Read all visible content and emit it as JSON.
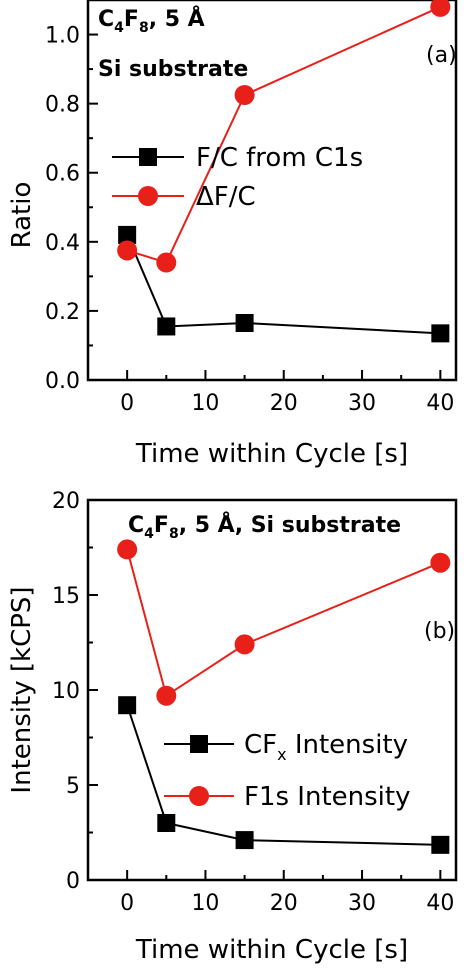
{
  "colors": {
    "series_black": "#000000",
    "series_red": "#e8201a",
    "axis": "#000000"
  },
  "chart_data": [
    {
      "type": "line",
      "panel_label": "(a)",
      "annotation_line1": {
        "base": "C",
        "sub1": "4",
        "mid": "F",
        "sub2": "8",
        "rest": ", 5 Å"
      },
      "annotation_line2": "Si substrate",
      "xlabel": "Time within Cycle [s]",
      "ylabel": "Ratio",
      "xlim": [
        -5,
        42
      ],
      "ylim": [
        0,
        1.1
      ],
      "xticks": [
        0,
        10,
        20,
        30,
        40
      ],
      "xtick_labels": [
        "0",
        "10",
        "20",
        "30",
        "40"
      ],
      "yticks": [
        0.0,
        0.2,
        0.4,
        0.6,
        0.8,
        1.0
      ],
      "ytick_labels": [
        "0.0",
        "0.2",
        "0.4",
        "0.6",
        "0.8",
        "1.0"
      ],
      "legend_position": "middle-left",
      "series": [
        {
          "name": "F/C from C1s",
          "marker": "square",
          "color": "#000000",
          "x": [
            0,
            5,
            15,
            40
          ],
          "y": [
            0.42,
            0.155,
            0.165,
            0.135
          ]
        },
        {
          "name": "ΔF/C",
          "marker": "circle",
          "color": "#e8201a",
          "x": [
            0,
            5,
            15,
            40
          ],
          "y": [
            0.375,
            0.34,
            0.825,
            1.08
          ]
        }
      ]
    },
    {
      "type": "line",
      "panel_label": "(b)",
      "annotation_line1": {
        "base": "C",
        "sub1": "4",
        "mid": "F",
        "sub2": "8",
        "rest": ", 5 Å, Si substrate"
      },
      "xlabel": "Time within Cycle [s]",
      "ylabel": "Intensity [kCPS]",
      "xlim": [
        -5,
        42
      ],
      "ylim": [
        0,
        20
      ],
      "xticks": [
        0,
        10,
        20,
        30,
        40
      ],
      "xtick_labels": [
        "0",
        "10",
        "20",
        "30",
        "40"
      ],
      "yticks": [
        0,
        5,
        10,
        15,
        20
      ],
      "ytick_labels": [
        "0",
        "5",
        "10",
        "15",
        "20"
      ],
      "legend_position": "bottom-right",
      "series": [
        {
          "name": "CF",
          "name_sub": "x",
          "name_rest": " Intensity",
          "marker": "square",
          "color": "#000000",
          "x": [
            0,
            5,
            15,
            40
          ],
          "y": [
            9.2,
            3.0,
            2.1,
            1.85
          ]
        },
        {
          "name": "F1s Intensity",
          "marker": "circle",
          "color": "#e8201a",
          "x": [
            0,
            5,
            15,
            40
          ],
          "y": [
            17.4,
            9.7,
            12.4,
            16.7
          ]
        }
      ]
    }
  ]
}
